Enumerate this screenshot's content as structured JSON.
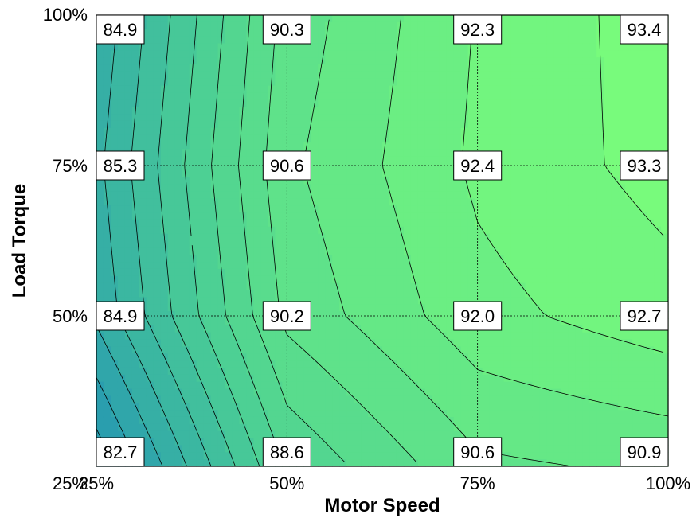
{
  "chart_data": {
    "type": "heatmap",
    "subtype": "filled-contour",
    "title": "",
    "xlabel": "Motor Speed",
    "ylabel": "Load Torque",
    "x": [
      25,
      50,
      75,
      100
    ],
    "y": [
      25,
      50,
      75,
      100
    ],
    "x_tick_labels": [
      "25%",
      "50%",
      "75%",
      "100%"
    ],
    "y_tick_labels": [
      "25%",
      "50%",
      "75%",
      "100%"
    ],
    "xlim": [
      25,
      100
    ],
    "ylim": [
      25,
      100
    ],
    "z": [
      [
        82.7,
        88.6,
        90.6,
        90.9
      ],
      [
        84.9,
        90.2,
        92.0,
        92.7
      ],
      [
        85.3,
        90.6,
        92.4,
        93.3
      ],
      [
        84.9,
        90.3,
        92.3,
        93.4
      ]
    ],
    "z_labels": [
      [
        "82.7",
        "88.6",
        "90.6",
        "90.9"
      ],
      [
        "84.9",
        "90.2",
        "92.0",
        "92.7"
      ],
      [
        "85.3",
        "90.6",
        "92.4",
        "93.3"
      ],
      [
        "84.9",
        "90.3",
        "92.3",
        "93.4"
      ]
    ],
    "grid": true,
    "grid_style": "dotted",
    "colormap": {
      "low": "#2394b4",
      "mid": "#4ccf94",
      "high": "#78fb7c"
    },
    "contour_line_color": "#000000"
  }
}
